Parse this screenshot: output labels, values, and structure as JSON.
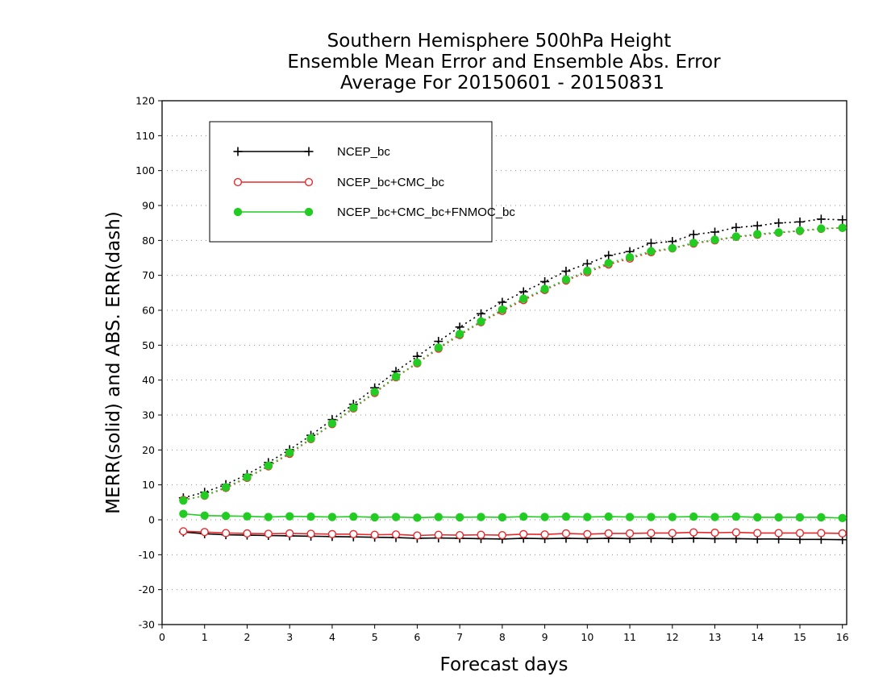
{
  "chart_data": {
    "type": "line",
    "title_lines": [
      "Southern Hemisphere 500hPa Height",
      "Ensemble Mean Error and Ensemble Abs. Error",
      "Average For 20150601 - 20150831"
    ],
    "xlabel": "Forecast days",
    "ylabel": "MERR(solid) and ABS. ERR(dash)",
    "xlim": [
      0,
      16.1
    ],
    "ylim": [
      -30,
      120
    ],
    "xticks": [
      0,
      1,
      2,
      3,
      4,
      5,
      6,
      7,
      8,
      9,
      10,
      11,
      12,
      13,
      14,
      15,
      16
    ],
    "yticks": [
      -30,
      -20,
      -10,
      0,
      10,
      20,
      30,
      40,
      50,
      60,
      70,
      80,
      90,
      100,
      110,
      120
    ],
    "grid": "horizontal-dotted",
    "legend_position": "top-left",
    "x": [
      0.5,
      1,
      1.5,
      2,
      2.5,
      3,
      3.5,
      4,
      4.5,
      5,
      5.5,
      6,
      6.5,
      7,
      7.5,
      8,
      8.5,
      9,
      9.5,
      10,
      10.5,
      11,
      11.5,
      12,
      12.5,
      13,
      13.5,
      14,
      14.5,
      15,
      15.5,
      16
    ],
    "series": [
      {
        "name": "NCEP_bc",
        "color": "#000000",
        "marker": "plus",
        "merr": [
          -3.5,
          -4.0,
          -4.3,
          -4.4,
          -4.5,
          -4.6,
          -4.7,
          -4.8,
          -4.9,
          -5.0,
          -5.1,
          -5.3,
          -5.2,
          -5.3,
          -5.4,
          -5.5,
          -5.3,
          -5.4,
          -5.3,
          -5.4,
          -5.3,
          -5.4,
          -5.3,
          -5.4,
          -5.3,
          -5.4,
          -5.4,
          -5.5,
          -5.5,
          -5.6,
          -5.6,
          -5.7
        ],
        "abserr": [
          6.3,
          7.9,
          10.1,
          13.0,
          16.4,
          20.1,
          24.2,
          28.7,
          33.1,
          37.8,
          42.5,
          46.8,
          51.1,
          55.2,
          59.0,
          62.3,
          65.3,
          68.2,
          71.2,
          73.3,
          75.7,
          76.8,
          79.2,
          79.7,
          81.7,
          82.4,
          83.7,
          84.2,
          85.0,
          85.3,
          86.1,
          85.9
        ]
      },
      {
        "name": "NCEP_bc+CMC_bc",
        "color": "#e8282b",
        "marker": "open-circle",
        "merr": [
          -3.3,
          -3.5,
          -3.8,
          -3.9,
          -4.0,
          -3.9,
          -4.0,
          -4.1,
          -4.1,
          -4.3,
          -4.2,
          -4.5,
          -4.3,
          -4.4,
          -4.3,
          -4.4,
          -4.1,
          -4.2,
          -3.9,
          -4.1,
          -3.9,
          -3.9,
          -3.8,
          -3.8,
          -3.6,
          -3.7,
          -3.6,
          -3.8,
          -3.8,
          -3.8,
          -3.8,
          -3.9
        ],
        "abserr": [
          5.7,
          6.9,
          9.1,
          12.0,
          15.3,
          18.9,
          23.1,
          27.4,
          31.9,
          36.3,
          40.8,
          44.8,
          49.0,
          52.9,
          56.6,
          59.8,
          62.9,
          65.8,
          68.5,
          70.9,
          73.1,
          74.8,
          76.6,
          77.7,
          79.1,
          80.0,
          81.0,
          81.6,
          82.2,
          82.7,
          83.3,
          83.6
        ]
      },
      {
        "name": "NCEP_bc+CMC_bc+FNMOC_bc",
        "color": "#22cc22",
        "marker": "filled-circle",
        "merr": [
          1.7,
          1.2,
          1.1,
          1.0,
          0.8,
          1.0,
          0.9,
          0.8,
          0.9,
          0.7,
          0.8,
          0.6,
          0.8,
          0.7,
          0.8,
          0.7,
          0.9,
          0.8,
          0.9,
          0.8,
          0.9,
          0.8,
          0.8,
          0.8,
          0.9,
          0.8,
          0.9,
          0.7,
          0.7,
          0.7,
          0.7,
          0.5
        ],
        "abserr": [
          5.5,
          7.0,
          9.3,
          12.2,
          15.5,
          19.2,
          23.3,
          27.6,
          32.1,
          36.6,
          41.0,
          45.0,
          49.3,
          53.2,
          56.8,
          60.2,
          63.3,
          66.1,
          68.8,
          71.3,
          73.5,
          75.2,
          76.9,
          77.8,
          79.3,
          80.2,
          81.1,
          81.8,
          82.3,
          82.8,
          83.4,
          83.6
        ]
      }
    ]
  }
}
